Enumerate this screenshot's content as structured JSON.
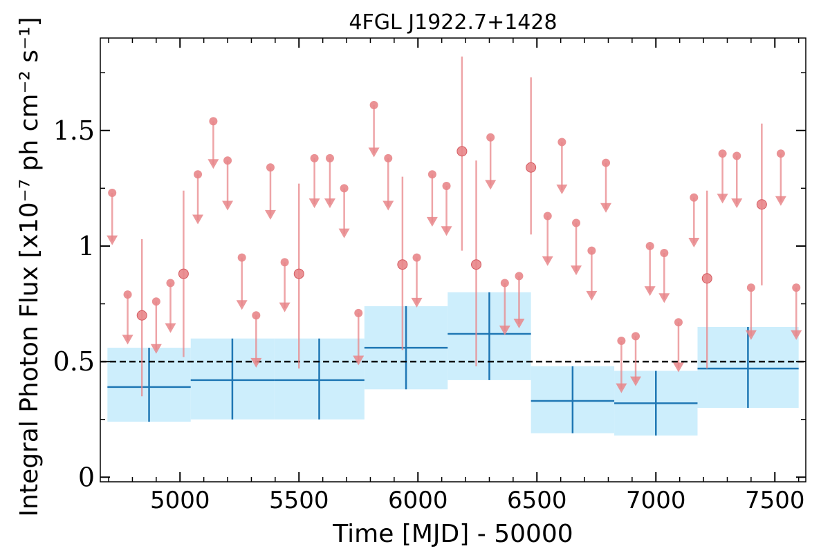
{
  "chart_data": {
    "type": "scatter",
    "title": "4FGL J1922.7+1428",
    "xlabel": "Time [MJD] - 50000",
    "ylabel": "Integral Photon Flux [x10⁻⁷ ph cm⁻² s⁻¹]",
    "xlim": [
      4665,
      7630
    ],
    "ylim": [
      -0.02,
      1.9
    ],
    "xticks": [
      5000,
      5500,
      6000,
      6500,
      7000,
      7500
    ],
    "xtick_labels": [
      "5000",
      "5500",
      "6000",
      "6500",
      "7000",
      "7500"
    ],
    "yticks": [
      0,
      0.5,
      1,
      1.5
    ],
    "ytick_labels": [
      "0",
      "0.5",
      "1",
      "1.5"
    ],
    "grid": false,
    "reference_line": {
      "y": 0.5,
      "style": "dashed",
      "color": "#000000"
    },
    "colors": {
      "short_bins": "#e8868a",
      "long_bins": "#1f77b4",
      "long_bins_band": "#cdeefc"
    },
    "long_bins": [
      {
        "x_start": 4695,
        "x_end": 5045,
        "x": 4870,
        "y": 0.39,
        "y_low": 0.24,
        "y_high": 0.56
      },
      {
        "x_start": 5045,
        "x_end": 5395,
        "x": 5220,
        "y": 0.42,
        "y_low": 0.25,
        "y_high": 0.6
      },
      {
        "x_start": 5395,
        "x_end": 5775,
        "x": 5585,
        "y": 0.42,
        "y_low": 0.25,
        "y_high": 0.6
      },
      {
        "x_start": 5775,
        "x_end": 6125,
        "x": 5950,
        "y": 0.56,
        "y_low": 0.38,
        "y_high": 0.74
      },
      {
        "x_start": 6125,
        "x_end": 6475,
        "x": 6300,
        "y": 0.62,
        "y_low": 0.42,
        "y_high": 0.8
      },
      {
        "x_start": 6475,
        "x_end": 6825,
        "x": 6650,
        "y": 0.33,
        "y_low": 0.19,
        "y_high": 0.48
      },
      {
        "x_start": 6825,
        "x_end": 7175,
        "x": 7000,
        "y": 0.32,
        "y_low": 0.18,
        "y_high": 0.46
      },
      {
        "x_start": 7175,
        "x_end": 7600,
        "x": 7387,
        "y": 0.47,
        "y_low": 0.3,
        "y_high": 0.65
      }
    ],
    "detections": [
      {
        "x": 4840,
        "y": 0.7,
        "y_low": 0.35,
        "y_high": 1.03
      },
      {
        "x": 5015,
        "y": 0.88,
        "y_low": 0.52,
        "y_high": 1.24
      },
      {
        "x": 5500,
        "y": 0.88,
        "y_low": 0.47,
        "y_high": 1.27
      },
      {
        "x": 5935,
        "y": 0.92,
        "y_low": 0.55,
        "y_high": 1.3
      },
      {
        "x": 6185,
        "y": 1.41,
        "y_low": 0.98,
        "y_high": 1.82
      },
      {
        "x": 6245,
        "y": 0.92,
        "y_low": 0.48,
        "y_high": 1.37
      },
      {
        "x": 6475,
        "y": 1.34,
        "y_low": 1.05,
        "y_high": 1.73
      },
      {
        "x": 7215,
        "y": 0.86,
        "y_low": 0.47,
        "y_high": 1.24
      },
      {
        "x": 7445,
        "y": 1.18,
        "y_low": 0.83,
        "y_high": 1.53
      }
    ],
    "upper_limits": [
      {
        "x": 4715,
        "y_top": 1.23,
        "y_arrow": 1.01
      },
      {
        "x": 4780,
        "y_top": 0.79,
        "y_arrow": 0.58
      },
      {
        "x": 4900,
        "y_top": 0.76,
        "y_arrow": 0.54
      },
      {
        "x": 4960,
        "y_top": 0.84,
        "y_arrow": 0.63
      },
      {
        "x": 5075,
        "y_top": 1.31,
        "y_arrow": 1.1
      },
      {
        "x": 5140,
        "y_top": 1.54,
        "y_arrow": 1.34
      },
      {
        "x": 5200,
        "y_top": 1.37,
        "y_arrow": 1.16
      },
      {
        "x": 5260,
        "y_top": 0.95,
        "y_arrow": 0.73
      },
      {
        "x": 5320,
        "y_top": 0.7,
        "y_arrow": 0.48
      },
      {
        "x": 5380,
        "y_top": 1.34,
        "y_arrow": 1.12
      },
      {
        "x": 5440,
        "y_top": 0.93,
        "y_arrow": 0.72
      },
      {
        "x": 5565,
        "y_top": 1.38,
        "y_arrow": 1.17
      },
      {
        "x": 5630,
        "y_top": 1.38,
        "y_arrow": 1.17
      },
      {
        "x": 5690,
        "y_top": 1.25,
        "y_arrow": 1.04
      },
      {
        "x": 5750,
        "y_top": 0.71,
        "y_arrow": 0.49
      },
      {
        "x": 5815,
        "y_top": 1.61,
        "y_arrow": 1.39
      },
      {
        "x": 5875,
        "y_top": 1.38,
        "y_arrow": 1.16
      },
      {
        "x": 5995,
        "y_top": 0.95,
        "y_arrow": 0.74
      },
      {
        "x": 6060,
        "y_top": 1.31,
        "y_arrow": 1.09
      },
      {
        "x": 6120,
        "y_top": 1.26,
        "y_arrow": 1.05
      },
      {
        "x": 6305,
        "y_top": 1.47,
        "y_arrow": 1.25
      },
      {
        "x": 6365,
        "y_top": 0.84,
        "y_arrow": 0.62
      },
      {
        "x": 6425,
        "y_top": 0.87,
        "y_arrow": 0.65
      },
      {
        "x": 6545,
        "y_top": 1.13,
        "y_arrow": 0.92
      },
      {
        "x": 6605,
        "y_top": 1.45,
        "y_arrow": 1.23
      },
      {
        "x": 6665,
        "y_top": 1.1,
        "y_arrow": 0.88
      },
      {
        "x": 6730,
        "y_top": 0.98,
        "y_arrow": 0.77
      },
      {
        "x": 6790,
        "y_top": 1.36,
        "y_arrow": 1.15
      },
      {
        "x": 6855,
        "y_top": 0.59,
        "y_arrow": 0.37
      },
      {
        "x": 6915,
        "y_top": 0.61,
        "y_arrow": 0.4
      },
      {
        "x": 6975,
        "y_top": 1.0,
        "y_arrow": 0.79
      },
      {
        "x": 7035,
        "y_top": 0.97,
        "y_arrow": 0.76
      },
      {
        "x": 7095,
        "y_top": 0.67,
        "y_arrow": 0.46
      },
      {
        "x": 7160,
        "y_top": 1.21,
        "y_arrow": 1.0
      },
      {
        "x": 7280,
        "y_top": 1.4,
        "y_arrow": 1.19
      },
      {
        "x": 7340,
        "y_top": 1.39,
        "y_arrow": 1.17
      },
      {
        "x": 7400,
        "y_top": 0.82,
        "y_arrow": 0.6
      },
      {
        "x": 7525,
        "y_top": 1.4,
        "y_arrow": 1.18
      },
      {
        "x": 7590,
        "y_top": 0.82,
        "y_arrow": 0.6
      }
    ]
  }
}
